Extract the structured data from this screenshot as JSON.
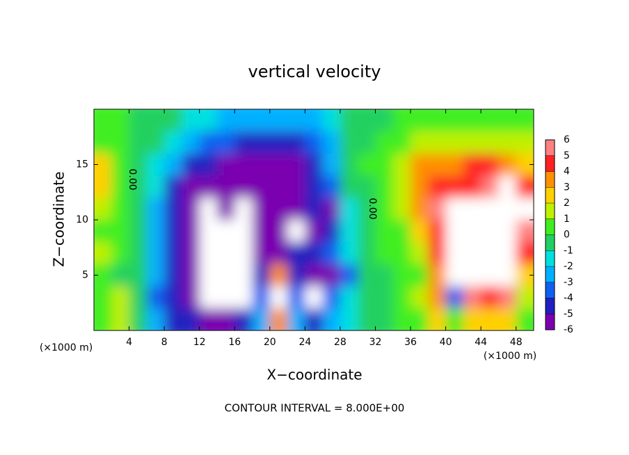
{
  "chart_data": {
    "type": "heatmap",
    "title": "vertical velocity",
    "x_label": "X−coordinate",
    "y_label": "Z−coordinate",
    "x_unit_label": "(×1000 m)",
    "x_unit_label_right": "(×1000 m)",
    "footer": "CONTOUR INTERVAL = 8.000E+00",
    "contour_labels": [
      "0.00",
      "0.00"
    ],
    "xlim": [
      0,
      50
    ],
    "ylim": [
      0,
      20
    ],
    "xticks": [
      4,
      8,
      12,
      16,
      20,
      24,
      28,
      32,
      36,
      40,
      44,
      48
    ],
    "yticks": [
      5,
      10,
      15
    ],
    "x": [
      1,
      3,
      5,
      7,
      9,
      11,
      13,
      15,
      17,
      19,
      21,
      23,
      25,
      27,
      29,
      31,
      33,
      35,
      37,
      39,
      41,
      43,
      45,
      47,
      49
    ],
    "y": [
      19,
      17,
      15,
      13,
      11,
      9,
      7,
      5,
      3,
      1
    ],
    "z": [
      [
        1,
        1,
        0,
        0,
        0,
        -1,
        -1,
        -2,
        -2,
        -2,
        -2,
        -2,
        -2,
        -1,
        0,
        0,
        0,
        1,
        1,
        1,
        1,
        1,
        1,
        1,
        1
      ],
      [
        1,
        1,
        0,
        0,
        -1,
        -2,
        -3,
        -3,
        -4,
        -4,
        -4,
        -4,
        -3,
        -2,
        0,
        0,
        1,
        1,
        2,
        2,
        2,
        2,
        2,
        2,
        2
      ],
      [
        3,
        1,
        0,
        -1,
        -2,
        -4,
        -4,
        -5,
        -5,
        -5,
        -5,
        -5,
        -4,
        -2,
        0,
        1,
        1,
        2,
        4,
        4,
        4,
        5,
        5,
        4,
        3
      ],
      [
        3,
        1,
        0,
        -1,
        -4,
        -5,
        -5,
        -5,
        -5,
        -6,
        -5,
        -5,
        -4,
        -3,
        0,
        0,
        1,
        2,
        4,
        5,
        5,
        5,
        6,
        7,
        5
      ],
      [
        2,
        1,
        0,
        -2,
        -4,
        -5,
        -7,
        -5,
        -7,
        -6,
        -5,
        -6,
        -4,
        -5,
        -1,
        0,
        1,
        2,
        4,
        6,
        7,
        7,
        8,
        8,
        7
      ],
      [
        1,
        1,
        0,
        -2,
        -4,
        -6,
        -8,
        -8,
        -8,
        -6,
        -5,
        -7,
        -5,
        -4,
        -1,
        0,
        1,
        1,
        3,
        5,
        8,
        8,
        8,
        8,
        6
      ],
      [
        2,
        1,
        0,
        -2,
        -4,
        -5,
        -8,
        -8,
        -8,
        -6,
        -5,
        -4,
        -4,
        -3,
        -1,
        0,
        1,
        1,
        2,
        5,
        8,
        8,
        8,
        8,
        5
      ],
      [
        1,
        0,
        0,
        -2,
        -4,
        -5,
        -8,
        -8,
        -7,
        -4,
        4,
        -4,
        -5,
        -5,
        -3,
        0,
        0,
        1,
        1,
        4,
        8,
        8,
        8,
        8,
        3
      ],
      [
        1,
        2,
        0,
        -3,
        -4,
        -5,
        -8,
        -8,
        -7,
        -3,
        8,
        -3,
        -7,
        -3,
        -1,
        0,
        0,
        1,
        2,
        4,
        -3,
        6,
        5,
        6,
        2
      ],
      [
        1,
        2,
        0,
        -2,
        -4,
        -4,
        -6,
        -5,
        -4,
        -2,
        4,
        -2,
        -4,
        -2,
        -1,
        0,
        0,
        1,
        1,
        3,
        1,
        3,
        3,
        3,
        1
      ]
    ],
    "colorbar": {
      "levels": [
        -6,
        -5,
        -4,
        -3,
        -2,
        -1,
        0,
        1,
        2,
        3,
        4,
        5,
        6
      ],
      "colors": [
        "#7a00b0",
        "#2020c0",
        "#1060f0",
        "#00b0ff",
        "#00e0e0",
        "#20d060",
        "#40ee20",
        "#c0f000",
        "#ffd000",
        "#ff9000",
        "#ff2020",
        "#ff8080"
      ]
    },
    "out_of_range_color": "#ffffff"
  }
}
